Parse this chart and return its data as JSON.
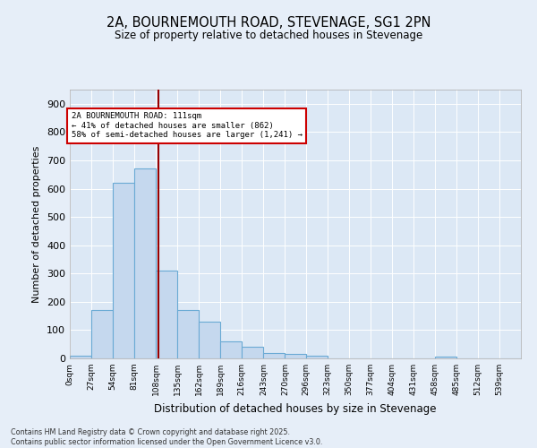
{
  "title_line1": "2A, BOURNEMOUTH ROAD, STEVENAGE, SG1 2PN",
  "title_line2": "Size of property relative to detached houses in Stevenage",
  "xlabel": "Distribution of detached houses by size in Stevenage",
  "ylabel": "Number of detached properties",
  "bin_labels": [
    "0sqm",
    "27sqm",
    "54sqm",
    "81sqm",
    "108sqm",
    "135sqm",
    "162sqm",
    "189sqm",
    "216sqm",
    "243sqm",
    "270sqm",
    "296sqm",
    "323sqm",
    "350sqm",
    "377sqm",
    "404sqm",
    "431sqm",
    "458sqm",
    "485sqm",
    "512sqm",
    "539sqm"
  ],
  "bin_left_edges": [
    0,
    27,
    54,
    81,
    108,
    135,
    162,
    189,
    216,
    243,
    270,
    296,
    323,
    350,
    377,
    404,
    431,
    458,
    485,
    512,
    539
  ],
  "bar_heights": [
    10,
    170,
    620,
    670,
    310,
    170,
    130,
    60,
    40,
    20,
    15,
    10,
    0,
    0,
    0,
    0,
    0,
    5,
    0,
    0,
    0
  ],
  "bar_color": "#c5d8ee",
  "bar_edge_color": "#6aaad4",
  "property_size": 111,
  "vline_color": "#990000",
  "annotation_bg": "#ffffff",
  "annotation_border": "#cc0000",
  "annotation_line1": "2A BOURNEMOUTH ROAD: 111sqm",
  "annotation_line2": "← 41% of detached houses are smaller (862)",
  "annotation_line3": "58% of semi-detached houses are larger (1,241) →",
  "ylim": [
    0,
    950
  ],
  "yticks": [
    0,
    100,
    200,
    300,
    400,
    500,
    600,
    700,
    800,
    900
  ],
  "bg_color": "#dce8f5",
  "fig_bg_color": "#e6eef8",
  "footer_line1": "Contains HM Land Registry data © Crown copyright and database right 2025.",
  "footer_line2": "Contains public sector information licensed under the Open Government Licence v3.0.",
  "bin_width": 27
}
